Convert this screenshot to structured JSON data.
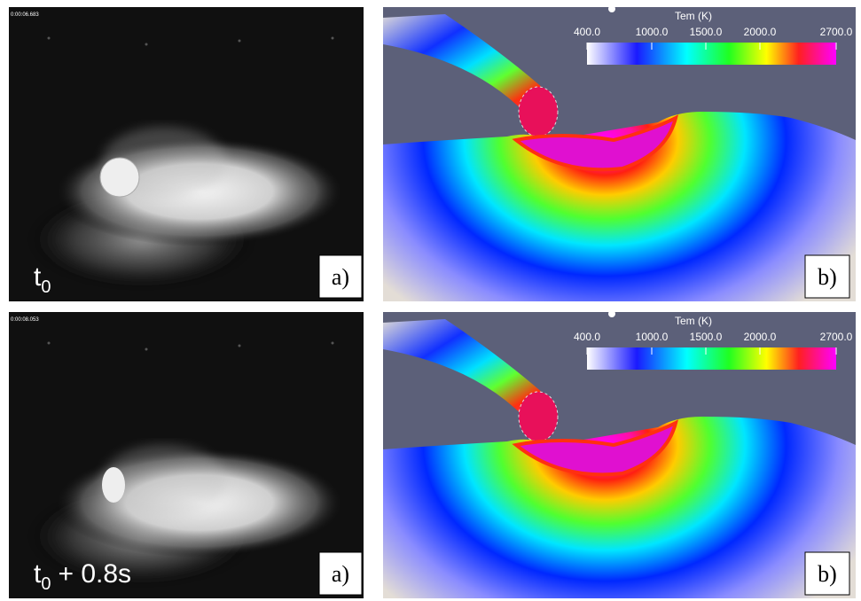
{
  "panels": [
    {
      "timestamp": "0:00:06.683",
      "photo_label": {
        "base": "t",
        "subscript": "0"
      },
      "photo_tag": "a)",
      "sim_tag": "b)",
      "colorbar": {
        "title": "Tem (K)",
        "ticks": [
          "400.0",
          "1000.0",
          "1500.0",
          "2000.0",
          "2700.0"
        ]
      }
    },
    {
      "timestamp": "0:00:08.053",
      "photo_label": {
        "base": "t",
        "subscript": "0",
        "suffix": "+ 0.8s"
      },
      "photo_tag": "a)",
      "sim_tag": "b)",
      "colorbar": {
        "title": "Tem (K)",
        "ticks": [
          "400.0",
          "1000.0",
          "1500.0",
          "2000.0",
          "2700.0"
        ]
      }
    }
  ]
}
